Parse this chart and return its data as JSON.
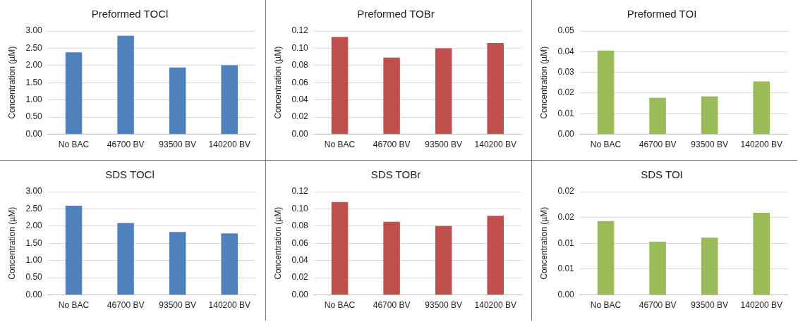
{
  "chart_data": [
    {
      "type": "bar",
      "title": "Preformed TOCl",
      "ylabel": "Concentration (µM)",
      "categories": [
        "No BAC",
        "46700 BV",
        "93500 BV",
        "140200 BV"
      ],
      "values": [
        2.38,
        2.86,
        1.94,
        2.01
      ],
      "color": "#4f81bd",
      "ylim": [
        0,
        3
      ],
      "yticks": [
        {
          "value": 0,
          "label": "0.00"
        },
        {
          "value": 0.5,
          "label": "0.50"
        },
        {
          "value": 1,
          "label": "1.00"
        },
        {
          "value": 1.5,
          "label": "1.50"
        },
        {
          "value": 2,
          "label": "2.00"
        },
        {
          "value": 2.5,
          "label": "2.50"
        },
        {
          "value": 3,
          "label": "3.00"
        }
      ],
      "grid": "y"
    },
    {
      "type": "bar",
      "title": "Preformed TOBr",
      "ylabel": "Concentration (µM)",
      "categories": [
        "No BAC",
        "46700 BV",
        "93500 BV",
        "140200 BV"
      ],
      "values": [
        0.113,
        0.089,
        0.1,
        0.106
      ],
      "color": "#c0504d",
      "ylim": [
        0,
        0.12
      ],
      "yticks": [
        {
          "value": 0,
          "label": "0.00"
        },
        {
          "value": 0.02,
          "label": "0.02"
        },
        {
          "value": 0.04,
          "label": "0.04"
        },
        {
          "value": 0.06,
          "label": "0.06"
        },
        {
          "value": 0.08,
          "label": "0.08"
        },
        {
          "value": 0.1,
          "label": "0.10"
        },
        {
          "value": 0.12,
          "label": "0.12"
        }
      ],
      "grid": "y"
    },
    {
      "type": "bar",
      "title": "Preformed TOI",
      "ylabel": "Concentration (µM)",
      "categories": [
        "No BAC",
        "46700 BV",
        "93500 BV",
        "140200 BV"
      ],
      "values": [
        0.0405,
        0.0177,
        0.0184,
        0.0256
      ],
      "color": "#9bbb59",
      "ylim": [
        0,
        0.05
      ],
      "yticks": [
        {
          "value": 0,
          "label": "0.00"
        },
        {
          "value": 0.01,
          "label": "0.01"
        },
        {
          "value": 0.02,
          "label": "0.02"
        },
        {
          "value": 0.03,
          "label": "0.03"
        },
        {
          "value": 0.04,
          "label": "0.04"
        },
        {
          "value": 0.05,
          "label": "0.05"
        }
      ],
      "grid": "y"
    },
    {
      "type": "bar",
      "title": "SDS TOCl",
      "ylabel": "Concentration (µM)",
      "categories": [
        "No BAC",
        "46700 BV",
        "93500 BV",
        "140200 BV"
      ],
      "values": [
        2.59,
        2.09,
        1.83,
        1.79
      ],
      "color": "#4f81bd",
      "ylim": [
        0,
        3
      ],
      "yticks": [
        {
          "value": 0,
          "label": "0.00"
        },
        {
          "value": 0.5,
          "label": "0.50"
        },
        {
          "value": 1,
          "label": "1.00"
        },
        {
          "value": 1.5,
          "label": "1.50"
        },
        {
          "value": 2,
          "label": "2.00"
        },
        {
          "value": 2.5,
          "label": "2.50"
        },
        {
          "value": 3,
          "label": "3.00"
        }
      ],
      "grid": "y"
    },
    {
      "type": "bar",
      "title": "SDS TOBr",
      "ylabel": "Concentration (µM)",
      "categories": [
        "No BAC",
        "46700 BV",
        "93500 BV",
        "140200 BV"
      ],
      "values": [
        0.108,
        0.085,
        0.08,
        0.092
      ],
      "color": "#c0504d",
      "ylim": [
        0,
        0.12
      ],
      "yticks": [
        {
          "value": 0,
          "label": "0.00"
        },
        {
          "value": 0.02,
          "label": "0.02"
        },
        {
          "value": 0.04,
          "label": "0.04"
        },
        {
          "value": 0.06,
          "label": "0.06"
        },
        {
          "value": 0.08,
          "label": "0.08"
        },
        {
          "value": 0.1,
          "label": "0.10"
        },
        {
          "value": 0.12,
          "label": "0.12"
        }
      ],
      "grid": "y"
    },
    {
      "type": "bar",
      "title": "SDS TOI",
      "ylabel": "Concentration (µM)",
      "categories": [
        "No BAC",
        "46700 BV",
        "93500 BV",
        "140200 BV"
      ],
      "values": [
        0.0143,
        0.0103,
        0.0111,
        0.0159
      ],
      "color": "#9bbb59",
      "ylim": [
        0,
        0.02
      ],
      "yticks": [
        {
          "value": 0,
          "label": "0.00"
        },
        {
          "value": 0.005,
          "label": "0.01"
        },
        {
          "value": 0.01,
          "label": "0.01"
        },
        {
          "value": 0.015,
          "label": "0.02"
        },
        {
          "value": 0.02,
          "label": "0.02"
        }
      ],
      "grid": "y"
    }
  ]
}
